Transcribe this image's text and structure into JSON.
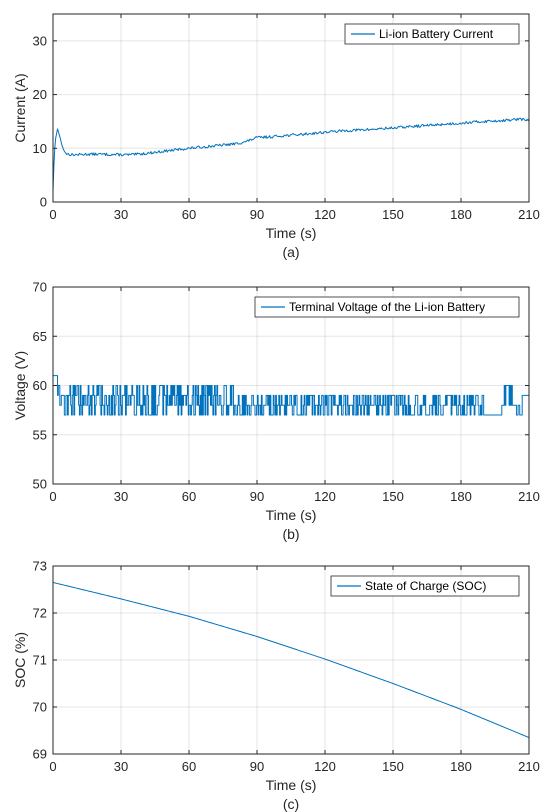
{
  "colors": {
    "series": "#0072BD",
    "axis": "#262626"
  },
  "chart_data": [
    {
      "type": "line",
      "caption": "(a)",
      "xlabel": "Time (s)",
      "ylabel": "Current (A)",
      "xlim": [
        0,
        210
      ],
      "ylim": [
        0,
        35
      ],
      "xticks": [
        0,
        30,
        60,
        90,
        120,
        150,
        180,
        210
      ],
      "yticks": [
        0,
        10,
        20,
        30
      ],
      "grid": true,
      "legend_position": "top-right",
      "series": [
        {
          "name": "Li-ion Battery Current",
          "noise": 0.25,
          "x": [
            0,
            0.5,
            1,
            2,
            3,
            4,
            5,
            6,
            8,
            10,
            15,
            20,
            30,
            35,
            40,
            50,
            60,
            70,
            80,
            85,
            88,
            90,
            95,
            100,
            110,
            120,
            130,
            140,
            150,
            160,
            170,
            180,
            190,
            200,
            205,
            210
          ],
          "y": [
            2,
            8,
            11.5,
            13.6,
            12.2,
            10.5,
            9.4,
            9,
            8.8,
            8.8,
            8.9,
            8.9,
            8.8,
            8.8,
            9,
            9.5,
            10,
            10.4,
            10.8,
            11.2,
            11.7,
            12,
            12.1,
            12.3,
            12.6,
            13,
            13.3,
            13.5,
            13.8,
            14.1,
            14.4,
            14.7,
            15,
            15.2,
            15.4,
            15.3
          ]
        }
      ]
    },
    {
      "type": "line",
      "caption": "(b)",
      "xlabel": "Time (s)",
      "ylabel": "Voltage (V)",
      "xlim": [
        0,
        210
      ],
      "ylim": [
        50,
        70
      ],
      "xticks": [
        0,
        30,
        60,
        90,
        120,
        150,
        180,
        210
      ],
      "yticks": [
        50,
        55,
        60,
        65,
        70
      ],
      "grid": true,
      "legend_position": "top-right",
      "series": [
        {
          "name": "Terminal Voltage of the Li-ion Battery",
          "stepped": true,
          "segments": [
            {
              "from": 0,
              "to": 2,
              "levels": [
                61
              ]
            },
            {
              "from": 2,
              "to": 5,
              "levels": [
                60,
                59,
                58
              ]
            },
            {
              "from": 5,
              "to": 80,
              "levels": [
                60,
                59,
                58,
                57
              ]
            },
            {
              "from": 80,
              "to": 190,
              "levels": [
                59,
                58,
                57
              ]
            },
            {
              "from": 190,
              "to": 198,
              "levels": [
                57
              ]
            },
            {
              "from": 198,
              "to": 203,
              "levels": [
                60,
                58
              ]
            },
            {
              "from": 203,
              "to": 207,
              "levels": [
                57,
                58
              ]
            },
            {
              "from": 207,
              "to": 210,
              "levels": [
                59
              ]
            }
          ]
        }
      ]
    },
    {
      "type": "line",
      "caption": "(c)",
      "xlabel": "Time (s)",
      "ylabel": "SOC (%)",
      "xlim": [
        0,
        210
      ],
      "ylim": [
        69,
        73
      ],
      "xticks": [
        0,
        30,
        60,
        90,
        120,
        150,
        180,
        210
      ],
      "yticks": [
        69,
        70,
        71,
        72,
        73
      ],
      "grid": true,
      "legend_position": "top-right",
      "series": [
        {
          "name": "State of Charge (SOC)",
          "x": [
            0,
            30,
            60,
            90,
            120,
            150,
            180,
            210
          ],
          "y": [
            72.65,
            72.3,
            71.93,
            71.5,
            71.02,
            70.5,
            69.95,
            69.35
          ]
        }
      ]
    }
  ]
}
